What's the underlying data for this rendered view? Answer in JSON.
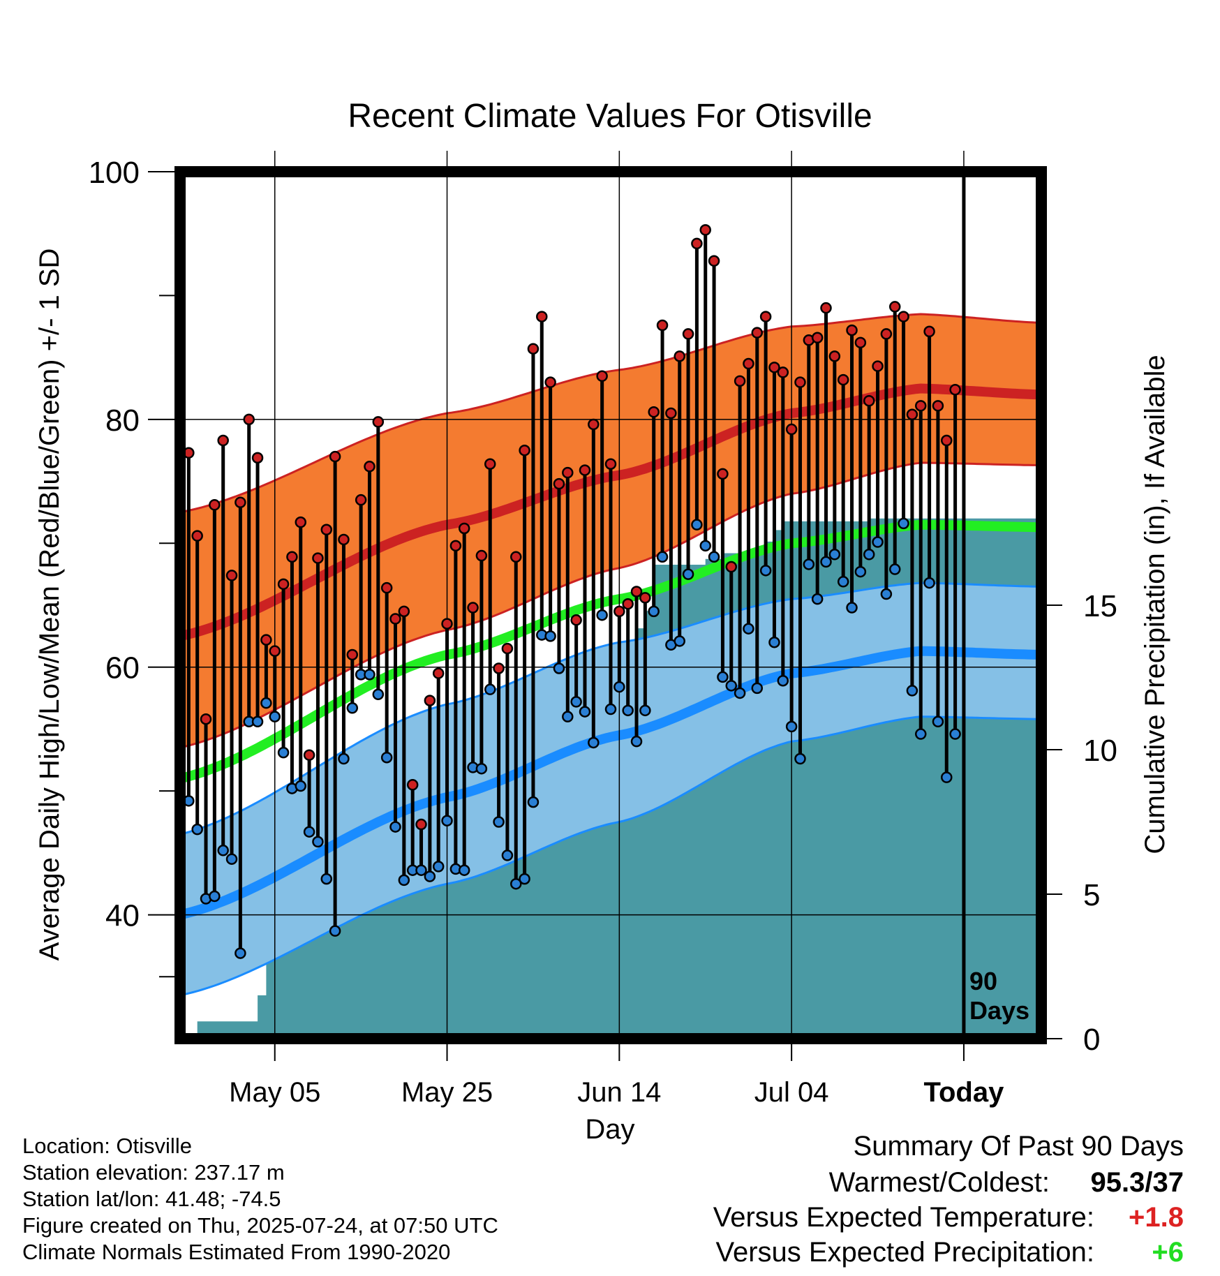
{
  "chart_data": {
    "type": "line",
    "title": "Recent Climate Values For Otisville",
    "xlabel": "Day",
    "ylabel": "Average Daily High/Low/Mean (Red/Blue/Green) +/- 1 SD",
    "y2label": "Cumulative Precipitation (in), If Available",
    "ylim": [
      30,
      100
    ],
    "y2lim": [
      0,
      30
    ],
    "y_ticks": [
      40,
      60,
      80,
      100
    ],
    "y2_ticks": [
      0,
      5,
      10,
      15
    ],
    "x_tick_labels": [
      "May 05",
      "May 25",
      "Jun 14",
      "Jul 04",
      "Today"
    ],
    "x_tick_days": [
      -80,
      -60,
      -40,
      -20,
      0
    ],
    "xlim": [
      -91,
      9
    ],
    "grid": true,
    "today_marker_label": "90 Days",
    "normal_high_mean": [
      [
        -91,
        62.5
      ],
      [
        -60,
        71.5
      ],
      [
        -40,
        75.5
      ],
      [
        -20,
        80.5
      ],
      [
        -5,
        82.5
      ],
      [
        9,
        82.0
      ]
    ],
    "normal_high_upper": [
      [
        -91,
        72.5
      ],
      [
        -60,
        80.5
      ],
      [
        -40,
        84.0
      ],
      [
        -20,
        87.5
      ],
      [
        -5,
        88.5
      ],
      [
        9,
        87.8
      ]
    ],
    "normal_high_lower": [
      [
        -91,
        53.5
      ],
      [
        -60,
        63.0
      ],
      [
        -40,
        68.0
      ],
      [
        -20,
        74.0
      ],
      [
        -5,
        76.5
      ],
      [
        9,
        76.3
      ]
    ],
    "normal_mean": [
      [
        -91,
        51.0
      ],
      [
        -60,
        61.0
      ],
      [
        -40,
        65.5
      ],
      [
        -20,
        70.0
      ],
      [
        -5,
        71.5
      ],
      [
        9,
        71.3
      ]
    ],
    "normal_low_mean": [
      [
        -91,
        40.0
      ],
      [
        -60,
        49.5
      ],
      [
        -40,
        54.5
      ],
      [
        -20,
        59.5
      ],
      [
        -5,
        61.3
      ],
      [
        9,
        61.0
      ]
    ],
    "normal_low_upper": [
      [
        -91,
        46.5
      ],
      [
        -60,
        57.0
      ],
      [
        -40,
        62.0
      ],
      [
        -20,
        65.5
      ],
      [
        -5,
        66.8
      ],
      [
        9,
        66.5
      ]
    ],
    "normal_low_lower": [
      [
        -91,
        33.5
      ],
      [
        -60,
        42.5
      ],
      [
        -40,
        47.5
      ],
      [
        -20,
        54.0
      ],
      [
        -5,
        56.0
      ],
      [
        9,
        55.8
      ]
    ],
    "daily": [
      {
        "day": -90,
        "high": 77.3,
        "low": 49.2
      },
      {
        "day": -89,
        "high": 70.6,
        "low": 46.9
      },
      {
        "day": -88,
        "high": 55.8,
        "low": 41.3
      },
      {
        "day": -87,
        "high": 73.1,
        "low": 41.5
      },
      {
        "day": -86,
        "high": 78.3,
        "low": 45.2
      },
      {
        "day": -85,
        "high": 67.4,
        "low": 44.5
      },
      {
        "day": -84,
        "high": 73.3,
        "low": 36.9
      },
      {
        "day": -83,
        "high": 80.0,
        "low": 55.6
      },
      {
        "day": -82,
        "high": 76.9,
        "low": 55.6
      },
      {
        "day": -81,
        "high": 62.2,
        "low": 57.1
      },
      {
        "day": -80,
        "high": 61.3,
        "low": 56.0
      },
      {
        "day": -79,
        "high": 66.7,
        "low": 53.1
      },
      {
        "day": -78,
        "high": 68.9,
        "low": 50.2
      },
      {
        "day": -77,
        "high": 71.7,
        "low": 50.4
      },
      {
        "day": -76,
        "high": 52.9,
        "low": 46.7
      },
      {
        "day": -75,
        "high": 68.8,
        "low": 45.9
      },
      {
        "day": -74,
        "high": 71.1,
        "low": 42.9
      },
      {
        "day": -73,
        "high": 77.0,
        "low": 38.7
      },
      {
        "day": -72,
        "high": 70.3,
        "low": 52.6
      },
      {
        "day": -71,
        "high": 61.0,
        "low": 56.7
      },
      {
        "day": -70,
        "high": 73.5,
        "low": 59.4
      },
      {
        "day": -69,
        "high": 76.2,
        "low": 59.4
      },
      {
        "day": -68,
        "high": 79.8,
        "low": 57.8
      },
      {
        "day": -67,
        "high": 66.4,
        "low": 52.7
      },
      {
        "day": -66,
        "high": 63.9,
        "low": 47.1
      },
      {
        "day": -65,
        "high": 64.5,
        "low": 42.8
      },
      {
        "day": -64,
        "high": 50.5,
        "low": 43.6
      },
      {
        "day": -63,
        "high": 47.3,
        "low": 43.6
      },
      {
        "day": -62,
        "high": 57.3,
        "low": 43.1
      },
      {
        "day": -61,
        "high": 59.5,
        "low": 43.9
      },
      {
        "day": -60,
        "high": 63.5,
        "low": 47.6
      },
      {
        "day": -59,
        "high": 69.8,
        "low": 43.7
      },
      {
        "day": -58,
        "high": 71.2,
        "low": 43.6
      },
      {
        "day": -57,
        "high": 64.8,
        "low": 51.9
      },
      {
        "day": -56,
        "high": 69.0,
        "low": 51.8
      },
      {
        "day": -55,
        "high": 76.4,
        "low": 58.2
      },
      {
        "day": -54,
        "high": 59.9,
        "low": 47.5
      },
      {
        "day": -53,
        "high": 61.5,
        "low": 44.8
      },
      {
        "day": -52,
        "high": 68.9,
        "low": 42.5
      },
      {
        "day": -51,
        "high": 77.5,
        "low": 42.9
      },
      {
        "day": -50,
        "high": 85.7,
        "low": 49.1
      },
      {
        "day": -49,
        "high": 88.3,
        "low": 62.6
      },
      {
        "day": -48,
        "high": 83.0,
        "low": 62.5
      },
      {
        "day": -47,
        "high": 74.8,
        "low": 59.9
      },
      {
        "day": -46,
        "high": 75.7,
        "low": 56.0
      },
      {
        "day": -45,
        "high": 63.8,
        "low": 57.2
      },
      {
        "day": -44,
        "high": 75.9,
        "low": 56.4
      },
      {
        "day": -43,
        "high": 79.6,
        "low": 53.9
      },
      {
        "day": -42,
        "high": 83.5,
        "low": 64.2
      },
      {
        "day": -41,
        "high": 76.4,
        "low": 56.6
      },
      {
        "day": -40,
        "high": 64.5,
        "low": 58.4
      },
      {
        "day": -39,
        "high": 65.1,
        "low": 56.5
      },
      {
        "day": -38,
        "high": 66.1,
        "low": 54.0
      },
      {
        "day": -37,
        "high": 65.6,
        "low": 56.5
      },
      {
        "day": -36,
        "high": 80.6,
        "low": 64.5
      },
      {
        "day": -35,
        "high": 87.6,
        "low": 68.9
      },
      {
        "day": -34,
        "high": 80.5,
        "low": 61.8
      },
      {
        "day": -33,
        "high": 85.1,
        "low": 62.1
      },
      {
        "day": -32,
        "high": 86.9,
        "low": 67.5
      },
      {
        "day": -31,
        "high": 94.2,
        "low": 71.5
      },
      {
        "day": -30,
        "high": 95.3,
        "low": 69.8
      },
      {
        "day": -29,
        "high": 92.8,
        "low": 68.9
      },
      {
        "day": -28,
        "high": 75.6,
        "low": 59.2
      },
      {
        "day": -27,
        "high": 68.1,
        "low": 58.5
      },
      {
        "day": -26,
        "high": 83.1,
        "low": 57.9
      },
      {
        "day": -25,
        "high": 84.5,
        "low": 63.1
      },
      {
        "day": -24,
        "high": 87.0,
        "low": 58.3
      },
      {
        "day": -23,
        "high": 88.3,
        "low": 67.8
      },
      {
        "day": -22,
        "high": 84.2,
        "low": 62.0
      },
      {
        "day": -21,
        "high": 83.8,
        "low": 58.9
      },
      {
        "day": -20,
        "high": 79.2,
        "low": 55.2
      },
      {
        "day": -19,
        "high": 83.0,
        "low": 52.6
      },
      {
        "day": -18,
        "high": 86.4,
        "low": 68.3
      },
      {
        "day": -17,
        "high": 86.6,
        "low": 65.5
      },
      {
        "day": -16,
        "high": 89.0,
        "low": 68.5
      },
      {
        "day": -15,
        "high": 85.1,
        "low": 69.1
      },
      {
        "day": -14,
        "high": 83.2,
        "low": 66.9
      },
      {
        "day": -13,
        "high": 87.2,
        "low": 64.8
      },
      {
        "day": -12,
        "high": 86.2,
        "low": 67.7
      },
      {
        "day": -11,
        "high": 81.5,
        "low": 69.1
      },
      {
        "day": -10,
        "high": 84.3,
        "low": 70.1
      },
      {
        "day": -9,
        "high": 86.9,
        "low": 65.9
      },
      {
        "day": -8,
        "high": 89.1,
        "low": 67.9
      },
      {
        "day": -7,
        "high": 88.3,
        "low": 71.6
      },
      {
        "day": -6,
        "high": 80.4,
        "low": 58.1
      },
      {
        "day": -5,
        "high": 81.1,
        "low": 54.6
      },
      {
        "day": -4,
        "high": 87.1,
        "low": 66.8
      },
      {
        "day": -3,
        "high": 81.1,
        "low": 55.6
      },
      {
        "day": -2,
        "high": 78.3,
        "low": 51.1
      },
      {
        "day": -1,
        "high": 82.4,
        "low": 54.6
      }
    ],
    "cumulative_precip": [
      [
        -90,
        0.0
      ],
      [
        -89,
        0.6
      ],
      [
        -83,
        0.6
      ],
      [
        -82,
        1.5
      ],
      [
        -81,
        3.7
      ],
      [
        -80,
        5.3
      ],
      [
        -79,
        5.5
      ],
      [
        -78,
        5.5
      ],
      [
        -77,
        5.8
      ],
      [
        -76,
        7.8
      ],
      [
        -73,
        7.8
      ],
      [
        -72,
        8.3
      ],
      [
        -71,
        9.0
      ],
      [
        -66,
        9.0
      ],
      [
        -65,
        9.2
      ],
      [
        -63,
        9.6
      ],
      [
        -62,
        10.1
      ],
      [
        -55,
        10.2
      ],
      [
        -54,
        12.1
      ],
      [
        -50,
        12.1
      ],
      [
        -49,
        12.3
      ],
      [
        -48,
        12.5
      ],
      [
        -47,
        12.8
      ],
      [
        -45,
        13.1
      ],
      [
        -43,
        13.1
      ],
      [
        -42,
        13.3
      ],
      [
        -40,
        13.3
      ],
      [
        -39,
        13.5
      ],
      [
        -38,
        14.2
      ],
      [
        -37,
        14.8
      ],
      [
        -36,
        16.4
      ],
      [
        -32,
        16.4
      ],
      [
        -30,
        16.6
      ],
      [
        -28,
        16.8
      ],
      [
        -24,
        16.8
      ],
      [
        -23,
        17.2
      ],
      [
        -22,
        17.6
      ],
      [
        -21,
        17.9
      ],
      [
        -14,
        17.9
      ],
      [
        -11,
        18.0
      ],
      [
        -8,
        18.0
      ],
      [
        0,
        18.0
      ],
      [
        9,
        18.0
      ]
    ]
  },
  "info": {
    "location": "Location: Otisville",
    "elevation": "Station elevation: 237.17 m",
    "latlon": "Station lat/lon: 41.48; -74.5",
    "created": "Figure created on Thu, 2025-07-24, at 07:50 UTC",
    "normals": "Climate Normals Estimated From 1990-2020"
  },
  "summary": {
    "heading": "Summary Of Past 90 Days",
    "warm_cold_label": "Warmest/Coldest:",
    "warm_cold_value": "95.3/37",
    "temp_label": "Versus Expected Temperature:",
    "temp_value": "+1.8",
    "temp_color": "#dd2222",
    "precip_label": "Versus Expected Precipitation:",
    "precip_value": "+6",
    "precip_color": "#22dd22"
  },
  "colors": {
    "high_band": "#f47b30",
    "high_line": "#cc2222",
    "mean_line": "#22ee22",
    "low_band": "#85c0e6",
    "low_line": "#1a8cff",
    "precip_fill": "#4a9aa4",
    "high_marker": "#cc2222",
    "low_marker": "#2a7fd4"
  }
}
